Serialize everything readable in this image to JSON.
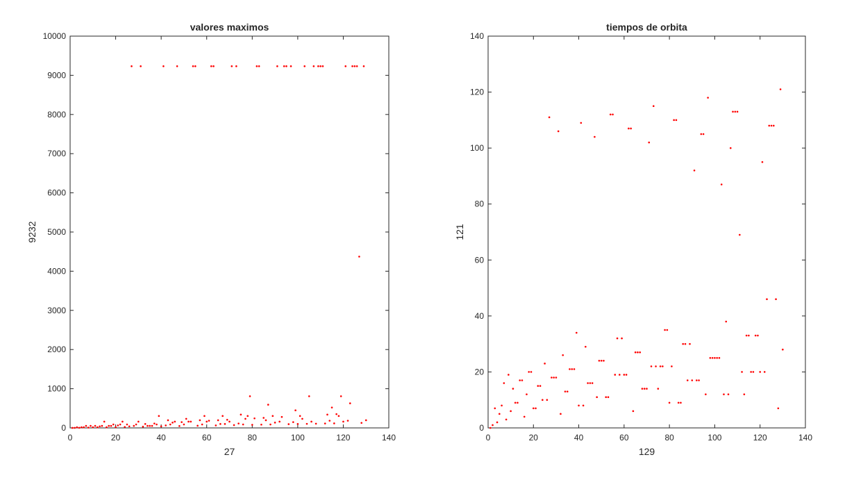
{
  "chart_data": [
    {
      "type": "scatter",
      "title": "valores maximos",
      "xlabel": "27",
      "ylabel": "9232",
      "xlim": [
        0,
        140
      ],
      "ylim": [
        0,
        10000
      ],
      "xticks": [
        "0",
        "20",
        "40",
        "60",
        "80",
        "100",
        "120",
        "140"
      ],
      "yticks": [
        "0",
        "1000",
        "2000",
        "3000",
        "4000",
        "5000",
        "6000",
        "7000",
        "8000",
        "9000",
        "10000"
      ],
      "grid": false,
      "marker_color": "#ff0000",
      "points": [
        [
          1,
          1
        ],
        [
          2,
          2
        ],
        [
          3,
          16
        ],
        [
          4,
          4
        ],
        [
          5,
          16
        ],
        [
          6,
          16
        ],
        [
          7,
          52
        ],
        [
          8,
          8
        ],
        [
          9,
          52
        ],
        [
          10,
          16
        ],
        [
          11,
          52
        ],
        [
          12,
          16
        ],
        [
          13,
          40
        ],
        [
          14,
          52
        ],
        [
          15,
          160
        ],
        [
          16,
          16
        ],
        [
          17,
          52
        ],
        [
          18,
          52
        ],
        [
          19,
          88
        ],
        [
          20,
          20
        ],
        [
          21,
          64
        ],
        [
          22,
          88
        ],
        [
          23,
          160
        ],
        [
          24,
          24
        ],
        [
          25,
          88
        ],
        [
          26,
          40
        ],
        [
          27,
          9232
        ],
        [
          28,
          52
        ],
        [
          29,
          88
        ],
        [
          30,
          160
        ],
        [
          31,
          9232
        ],
        [
          32,
          32
        ],
        [
          33,
          100
        ],
        [
          34,
          52
        ],
        [
          35,
          52
        ],
        [
          36,
          52
        ],
        [
          37,
          112
        ],
        [
          38,
          88
        ],
        [
          39,
          304
        ],
        [
          40,
          40
        ],
        [
          41,
          9232
        ],
        [
          42,
          64
        ],
        [
          43,
          196
        ],
        [
          44,
          88
        ],
        [
          45,
          136
        ],
        [
          46,
          160
        ],
        [
          47,
          9232
        ],
        [
          48,
          48
        ],
        [
          49,
          148
        ],
        [
          50,
          88
        ],
        [
          51,
          232
        ],
        [
          52,
          160
        ],
        [
          53,
          160
        ],
        [
          54,
          9232
        ],
        [
          55,
          9232
        ],
        [
          56,
          56
        ],
        [
          57,
          196
        ],
        [
          58,
          88
        ],
        [
          59,
          304
        ],
        [
          60,
          160
        ],
        [
          61,
          184
        ],
        [
          62,
          9232
        ],
        [
          63,
          9232
        ],
        [
          64,
          64
        ],
        [
          65,
          196
        ],
        [
          66,
          100
        ],
        [
          67,
          304
        ],
        [
          68,
          100
        ],
        [
          69,
          208
        ],
        [
          70,
          160
        ],
        [
          71,
          9232
        ],
        [
          72,
          72
        ],
        [
          73,
          9232
        ],
        [
          74,
          112
        ],
        [
          75,
          340
        ],
        [
          76,
          88
        ],
        [
          77,
          232
        ],
        [
          78,
          304
        ],
        [
          79,
          808
        ],
        [
          80,
          80
        ],
        [
          81,
          244
        ],
        [
          82,
          9232
        ],
        [
          83,
          9232
        ],
        [
          84,
          84
        ],
        [
          85,
          256
        ],
        [
          86,
          196
        ],
        [
          87,
          592
        ],
        [
          88,
          88
        ],
        [
          89,
          304
        ],
        [
          90,
          136
        ],
        [
          91,
          9232
        ],
        [
          92,
          160
        ],
        [
          93,
          280
        ],
        [
          94,
          9232
        ],
        [
          95,
          9232
        ],
        [
          96,
          96
        ],
        [
          97,
          9232
        ],
        [
          98,
          148
        ],
        [
          99,
          448
        ],
        [
          100,
          100
        ],
        [
          101,
          304
        ],
        [
          102,
          232
        ],
        [
          103,
          9232
        ],
        [
          104,
          104
        ],
        [
          105,
          808
        ],
        [
          106,
          160
        ],
        [
          107,
          9232
        ],
        [
          108,
          108
        ],
        [
          109,
          9232
        ],
        [
          110,
          9232
        ],
        [
          111,
          9232
        ],
        [
          112,
          112
        ],
        [
          113,
          340
        ],
        [
          114,
          184
        ],
        [
          115,
          520
        ],
        [
          116,
          116
        ],
        [
          117,
          352
        ],
        [
          118,
          304
        ],
        [
          119,
          808
        ],
        [
          120,
          160
        ],
        [
          121,
          9232
        ],
        [
          122,
          184
        ],
        [
          123,
          628
        ],
        [
          124,
          9232
        ],
        [
          125,
          9232
        ],
        [
          126,
          9232
        ],
        [
          127,
          4372
        ],
        [
          128,
          128
        ],
        [
          129,
          9232
        ],
        [
          130,
          196
        ]
      ]
    },
    {
      "type": "scatter",
      "title": "tiempos de orbita",
      "xlabel": "129",
      "ylabel": "121",
      "xlim": [
        0,
        140
      ],
      "ylim": [
        0,
        140
      ],
      "xticks": [
        "0",
        "20",
        "40",
        "60",
        "80",
        "100",
        "120",
        "140"
      ],
      "yticks": [
        "0",
        "20",
        "40",
        "60",
        "80",
        "100",
        "120",
        "140"
      ],
      "grid": false,
      "marker_color": "#ff0000",
      "points": [
        [
          1,
          0
        ],
        [
          2,
          1
        ],
        [
          3,
          7
        ],
        [
          4,
          2
        ],
        [
          5,
          5
        ],
        [
          6,
          8
        ],
        [
          7,
          16
        ],
        [
          8,
          3
        ],
        [
          9,
          19
        ],
        [
          10,
          6
        ],
        [
          11,
          14
        ],
        [
          12,
          9
        ],
        [
          13,
          9
        ],
        [
          14,
          17
        ],
        [
          15,
          17
        ],
        [
          16,
          4
        ],
        [
          17,
          12
        ],
        [
          18,
          20
        ],
        [
          19,
          20
        ],
        [
          20,
          7
        ],
        [
          21,
          7
        ],
        [
          22,
          15
        ],
        [
          23,
          15
        ],
        [
          24,
          10
        ],
        [
          25,
          23
        ],
        [
          26,
          10
        ],
        [
          27,
          111
        ],
        [
          28,
          18
        ],
        [
          29,
          18
        ],
        [
          30,
          18
        ],
        [
          31,
          106
        ],
        [
          32,
          5
        ],
        [
          33,
          26
        ],
        [
          34,
          13
        ],
        [
          35,
          13
        ],
        [
          36,
          21
        ],
        [
          37,
          21
        ],
        [
          38,
          21
        ],
        [
          39,
          34
        ],
        [
          40,
          8
        ],
        [
          41,
          109
        ],
        [
          42,
          8
        ],
        [
          43,
          29
        ],
        [
          44,
          16
        ],
        [
          45,
          16
        ],
        [
          46,
          16
        ],
        [
          47,
          104
        ],
        [
          48,
          11
        ],
        [
          49,
          24
        ],
        [
          50,
          24
        ],
        [
          51,
          24
        ],
        [
          52,
          11
        ],
        [
          53,
          11
        ],
        [
          54,
          112
        ],
        [
          55,
          112
        ],
        [
          56,
          19
        ],
        [
          57,
          32
        ],
        [
          58,
          19
        ],
        [
          59,
          32
        ],
        [
          60,
          19
        ],
        [
          61,
          19
        ],
        [
          62,
          107
        ],
        [
          63,
          107
        ],
        [
          64,
          6
        ],
        [
          65,
          27
        ],
        [
          66,
          27
        ],
        [
          67,
          27
        ],
        [
          68,
          14
        ],
        [
          69,
          14
        ],
        [
          70,
          14
        ],
        [
          71,
          102
        ],
        [
          72,
          22
        ],
        [
          73,
          115
        ],
        [
          74,
          22
        ],
        [
          75,
          14
        ],
        [
          76,
          22
        ],
        [
          77,
          22
        ],
        [
          78,
          35
        ],
        [
          79,
          35
        ],
        [
          80,
          9
        ],
        [
          81,
          22
        ],
        [
          82,
          110
        ],
        [
          83,
          110
        ],
        [
          84,
          9
        ],
        [
          85,
          9
        ],
        [
          86,
          30
        ],
        [
          87,
          30
        ],
        [
          88,
          17
        ],
        [
          89,
          30
        ],
        [
          90,
          17
        ],
        [
          91,
          92
        ],
        [
          92,
          17
        ],
        [
          93,
          17
        ],
        [
          94,
          105
        ],
        [
          95,
          105
        ],
        [
          96,
          12
        ],
        [
          97,
          118
        ],
        [
          98,
          25
        ],
        [
          99,
          25
        ],
        [
          100,
          25
        ],
        [
          101,
          25
        ],
        [
          102,
          25
        ],
        [
          103,
          87
        ],
        [
          104,
          12
        ],
        [
          105,
          38
        ],
        [
          106,
          12
        ],
        [
          107,
          100
        ],
        [
          108,
          113
        ],
        [
          109,
          113
        ],
        [
          110,
          113
        ],
        [
          111,
          69
        ],
        [
          112,
          20
        ],
        [
          113,
          12
        ],
        [
          114,
          33
        ],
        [
          115,
          33
        ],
        [
          116,
          20
        ],
        [
          117,
          20
        ],
        [
          118,
          33
        ],
        [
          119,
          33
        ],
        [
          120,
          20
        ],
        [
          121,
          95
        ],
        [
          122,
          20
        ],
        [
          123,
          46
        ],
        [
          124,
          108
        ],
        [
          125,
          108
        ],
        [
          126,
          108
        ],
        [
          127,
          46
        ],
        [
          128,
          7
        ],
        [
          129,
          121
        ],
        [
          130,
          28
        ]
      ]
    }
  ]
}
